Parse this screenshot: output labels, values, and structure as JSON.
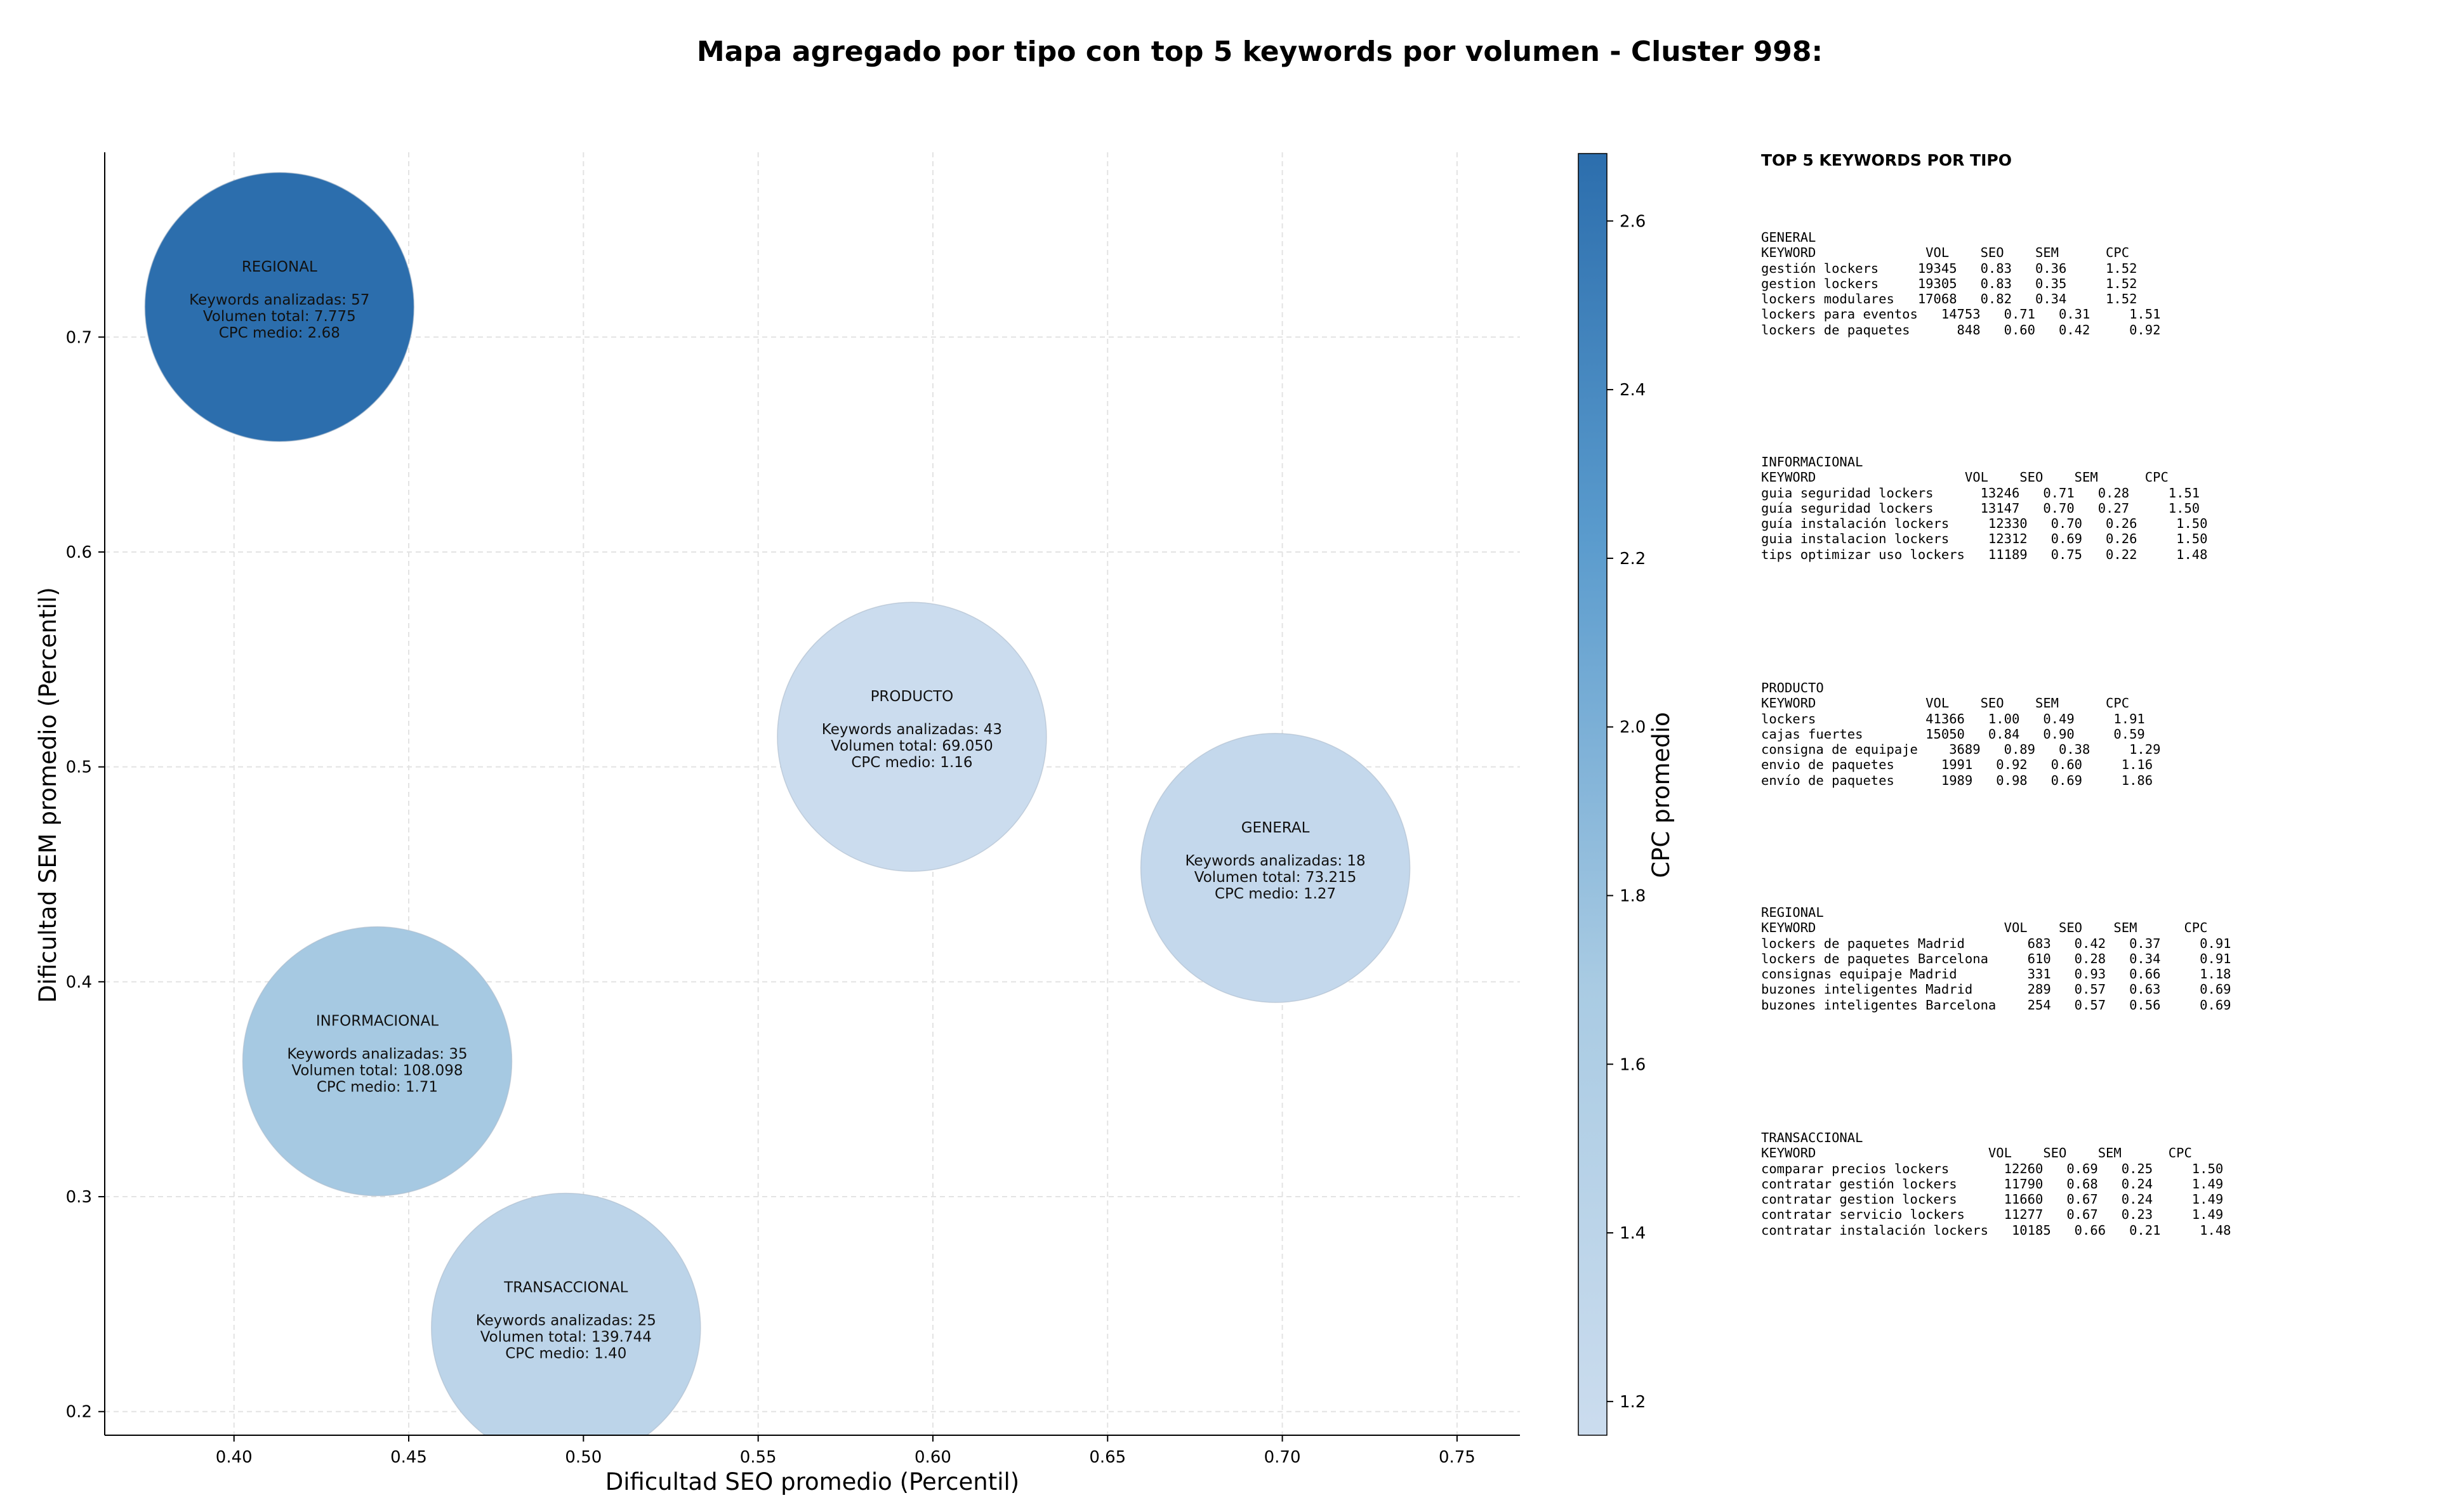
{
  "chart_data": {
    "type": "scatter",
    "title": "Mapa agregado por tipo con top 5 keywords por volumen - Cluster 998:",
    "xlabel": "Dificultad SEO promedio (Percentil)",
    "ylabel": "Dificultad SEM promedio (Percentil)",
    "xlim": [
      0.363,
      0.768
    ],
    "ylim": [
      0.189,
      0.786
    ],
    "xticks": [
      "0.40",
      "0.45",
      "0.50",
      "0.55",
      "0.60",
      "0.65",
      "0.70",
      "0.75"
    ],
    "yticks": [
      "0.2",
      "0.3",
      "0.4",
      "0.5",
      "0.6",
      "0.7"
    ],
    "grid": true,
    "colorbar": {
      "label": "CPC promedio",
      "range": [
        1.16,
        2.68
      ],
      "ticks": [
        "1.2",
        "1.4",
        "1.6",
        "1.8",
        "2.0",
        "2.2",
        "2.4",
        "2.6"
      ],
      "color_low": "#cbdcee",
      "color_high": "#2c6ead"
    },
    "points": [
      {
        "tipo": "REGIONAL",
        "x": 0.413,
        "y": 0.714,
        "keywords_label": "Keywords analizadas: 57",
        "volumen_label": "Volumen total: 7.775",
        "cpc_label": "CPC medio: 2.68",
        "cpc": 2.68
      },
      {
        "tipo": "PRODUCTO",
        "x": 0.594,
        "y": 0.514,
        "keywords_label": "Keywords analizadas: 43",
        "volumen_label": "Volumen total: 69.050",
        "cpc_label": "CPC medio: 1.16",
        "cpc": 1.16
      },
      {
        "tipo": "GENERAL",
        "x": 0.698,
        "y": 0.453,
        "keywords_label": "Keywords analizadas: 18",
        "volumen_label": "Volumen total: 73.215",
        "cpc_label": "CPC medio: 1.27",
        "cpc": 1.27
      },
      {
        "tipo": "INFORMACIONAL",
        "x": 0.441,
        "y": 0.363,
        "keywords_label": "Keywords analizadas: 35",
        "volumen_label": "Volumen total: 108.098",
        "cpc_label": "CPC medio: 1.71",
        "cpc": 1.71
      },
      {
        "tipo": "TRANSACCIONAL",
        "x": 0.495,
        "y": 0.239,
        "keywords_label": "Keywords analizadas: 25",
        "volumen_label": "Volumen total: 139.744",
        "cpc_label": "CPC medio: 1.40",
        "cpc": 1.4
      }
    ]
  },
  "keyword_panel": {
    "title": "TOP 5 KEYWORDS POR TIPO",
    "blocks": [
      {
        "tipo": "GENERAL",
        "header": "KEYWORD              VOL    SEO    SEM      CPC",
        "rows": [
          "gestión lockers     19345   0.83   0.36     1.52",
          "gestion lockers     19305   0.83   0.35     1.52",
          "lockers modulares   17068   0.82   0.34     1.52",
          "lockers para eventos   14753   0.71   0.31     1.51",
          "lockers de paquetes      848   0.60   0.42     0.92"
        ]
      },
      {
        "tipo": "INFORMACIONAL",
        "header": "KEYWORD                   VOL    SEO    SEM      CPC",
        "rows": [
          "guia seguridad lockers      13246   0.71   0.28     1.51",
          "guía seguridad lockers      13147   0.70   0.27     1.50",
          "guía instalación lockers     12330   0.70   0.26     1.50",
          "guia instalacion lockers     12312   0.69   0.26     1.50",
          "tips optimizar uso lockers   11189   0.75   0.22     1.48"
        ]
      },
      {
        "tipo": "PRODUCTO",
        "header": "KEYWORD              VOL    SEO    SEM      CPC",
        "rows": [
          "lockers              41366   1.00   0.49     1.91",
          "cajas fuertes        15050   0.84   0.90     0.59",
          "consigna de equipaje    3689   0.89   0.38     1.29",
          "envio de paquetes      1991   0.92   0.60     1.16",
          "envío de paquetes      1989   0.98   0.69     1.86"
        ]
      },
      {
        "tipo": "REGIONAL",
        "header": "KEYWORD                        VOL    SEO    SEM      CPC",
        "rows": [
          "lockers de paquetes Madrid        683   0.42   0.37     0.91",
          "lockers de paquetes Barcelona     610   0.28   0.34     0.91",
          "consignas equipaje Madrid         331   0.93   0.66     1.18",
          "buzones inteligentes Madrid       289   0.57   0.63     0.69",
          "buzones inteligentes Barcelona    254   0.57   0.56     0.69"
        ]
      },
      {
        "tipo": "TRANSACCIONAL",
        "header": "KEYWORD                      VOL    SEO    SEM      CPC",
        "rows": [
          "comparar precios lockers       12260   0.69   0.25     1.50",
          "contratar gestión lockers      11790   0.68   0.24     1.49",
          "contratar gestion lockers      11660   0.67   0.24     1.49",
          "contratar servicio lockers     11277   0.67   0.23     1.49",
          "contratar instalación lockers   10185   0.66   0.21     1.48"
        ]
      }
    ]
  }
}
